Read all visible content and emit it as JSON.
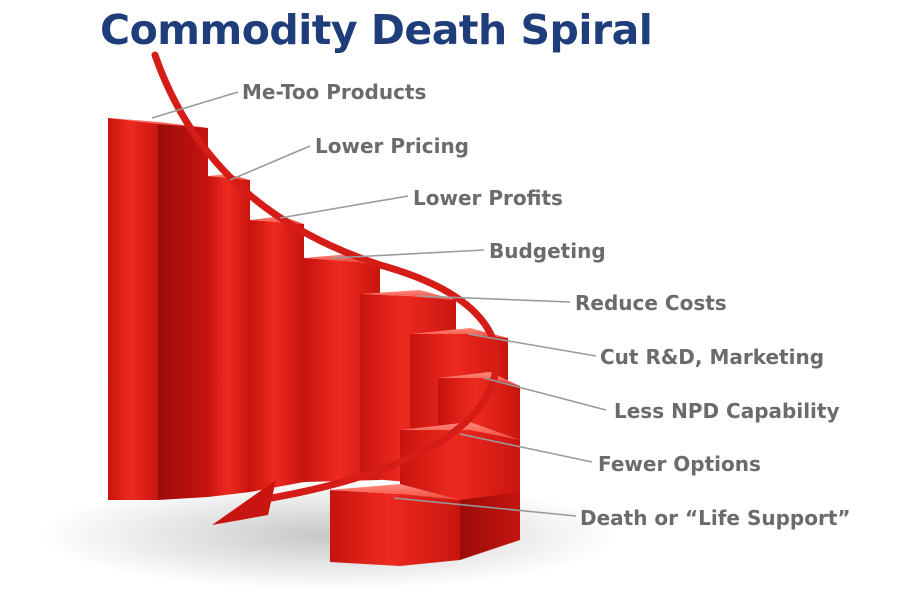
{
  "title": "Commodity Death Spiral",
  "stages": [
    {
      "label": "Me-Too Products"
    },
    {
      "label": "Lower Pricing"
    },
    {
      "label": "Lower Profits"
    },
    {
      "label": "Budgeting"
    },
    {
      "label": "Reduce Costs"
    },
    {
      "label": "Cut R&D, Marketing"
    },
    {
      "label": "Less NPD Capability"
    },
    {
      "label": "Fewer Options"
    },
    {
      "label": "Death or “Life Support”"
    }
  ],
  "colors": {
    "title": "#1f3d7a",
    "bar": "#e0201a",
    "bar_dark": "#a80e0a",
    "bar_light": "#f25a4e",
    "arrow": "#d51c16",
    "label": "#6b6b6b",
    "leader": "#9a9a9a"
  }
}
